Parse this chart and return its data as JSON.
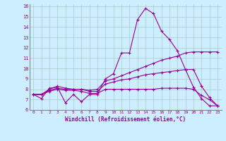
{
  "xlabel": "Windchill (Refroidissement éolien,°C)",
  "background_color": "#cceeff",
  "grid_color": "#aacccc",
  "line_color": "#990099",
  "xlim": [
    -0.5,
    23.5
  ],
  "ylim": [
    6,
    16.2
  ],
  "xticks": [
    0,
    1,
    2,
    3,
    4,
    5,
    6,
    7,
    8,
    9,
    10,
    11,
    12,
    13,
    14,
    15,
    16,
    17,
    18,
    19,
    20,
    21,
    22,
    23
  ],
  "yticks": [
    6,
    7,
    8,
    9,
    10,
    11,
    12,
    13,
    14,
    15,
    16
  ],
  "lines": [
    {
      "x": [
        0,
        1,
        2,
        3,
        4,
        5,
        6,
        7,
        8,
        9,
        10,
        11,
        12,
        13,
        14,
        15,
        16,
        17,
        18,
        19,
        20,
        21,
        22,
        23
      ],
      "y": [
        7.5,
        7.1,
        8.1,
        8.2,
        6.7,
        7.5,
        6.8,
        7.5,
        7.5,
        9.0,
        9.5,
        11.5,
        11.5,
        14.7,
        15.8,
        15.3,
        13.6,
        12.8,
        11.7,
        9.9,
        8.2,
        7.1,
        6.4,
        6.4
      ]
    },
    {
      "x": [
        0,
        1,
        2,
        3,
        4,
        5,
        6,
        7,
        8,
        9,
        10,
        11,
        12,
        13,
        14,
        15,
        16,
        17,
        18,
        19,
        20,
        21,
        22,
        23
      ],
      "y": [
        7.5,
        7.5,
        8.0,
        8.3,
        8.1,
        8.0,
        8.0,
        7.9,
        8.0,
        8.8,
        9.0,
        9.3,
        9.6,
        9.9,
        10.2,
        10.5,
        10.8,
        11.0,
        11.2,
        11.5,
        11.6,
        11.6,
        11.6,
        11.6
      ]
    },
    {
      "x": [
        0,
        1,
        2,
        3,
        4,
        5,
        6,
        7,
        8,
        9,
        10,
        11,
        12,
        13,
        14,
        15,
        16,
        17,
        18,
        19,
        20,
        21,
        22,
        23
      ],
      "y": [
        7.5,
        7.5,
        7.9,
        8.1,
        8.0,
        8.0,
        8.0,
        7.8,
        7.8,
        8.5,
        8.7,
        8.9,
        9.0,
        9.2,
        9.4,
        9.5,
        9.6,
        9.7,
        9.8,
        9.9,
        9.9,
        8.3,
        7.2,
        6.4
      ]
    },
    {
      "x": [
        0,
        1,
        2,
        3,
        4,
        5,
        6,
        7,
        8,
        9,
        10,
        11,
        12,
        13,
        14,
        15,
        16,
        17,
        18,
        19,
        20,
        21,
        22,
        23
      ],
      "y": [
        7.5,
        7.5,
        7.8,
        8.0,
        7.9,
        7.9,
        7.8,
        7.6,
        7.6,
        8.0,
        8.0,
        8.0,
        8.0,
        8.0,
        8.0,
        8.0,
        8.1,
        8.1,
        8.1,
        8.1,
        8.0,
        7.4,
        7.0,
        6.4
      ]
    }
  ]
}
